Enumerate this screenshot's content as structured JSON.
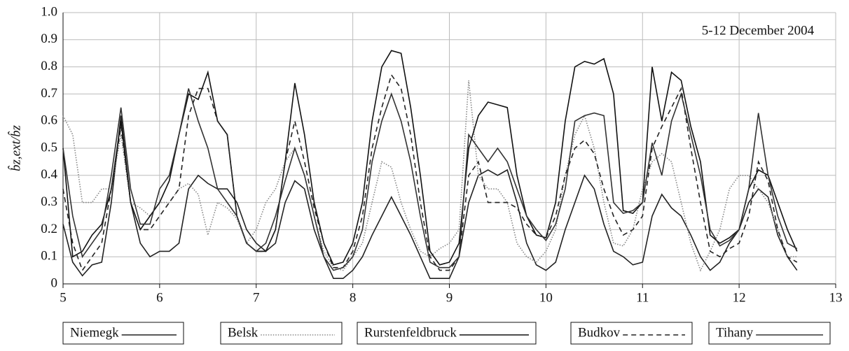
{
  "chart_data": {
    "type": "line",
    "annotation": "5-12 December 2004",
    "y_label": "b̂z,ext/b̂z",
    "x": [
      5,
      5.1,
      5.2,
      5.3,
      5.4,
      5.5,
      5.6,
      5.7,
      5.8,
      5.9,
      6,
      6.1,
      6.2,
      6.3,
      6.4,
      6.5,
      6.6,
      6.7,
      6.8,
      6.9,
      7,
      7.1,
      7.2,
      7.3,
      7.4,
      7.5,
      7.6,
      7.7,
      7.8,
      7.9,
      8,
      8.1,
      8.2,
      8.3,
      8.4,
      8.5,
      8.6,
      8.7,
      8.8,
      8.9,
      9,
      9.1,
      9.2,
      9.3,
      9.4,
      9.5,
      9.6,
      9.7,
      9.8,
      9.9,
      10,
      10.1,
      10.2,
      10.3,
      10.4,
      10.5,
      10.6,
      10.7,
      10.8,
      10.9,
      11,
      11.1,
      11.2,
      11.3,
      11.4,
      11.5,
      11.6,
      11.7,
      11.8,
      11.9,
      12,
      12.1,
      12.2,
      12.3,
      12.4,
      12.5,
      12.6
    ],
    "series": [
      {
        "name": "Niemegk",
        "color": "#222222",
        "dash": "solid",
        "values": [
          0.22,
          0.08,
          0.03,
          0.07,
          0.08,
          0.3,
          0.62,
          0.3,
          0.15,
          0.1,
          0.12,
          0.12,
          0.15,
          0.35,
          0.4,
          0.37,
          0.35,
          0.35,
          0.3,
          0.2,
          0.15,
          0.12,
          0.15,
          0.3,
          0.38,
          0.35,
          0.2,
          0.1,
          0.02,
          0.02,
          0.05,
          0.1,
          0.18,
          0.25,
          0.32,
          0.25,
          0.18,
          0.1,
          0.02,
          0.02,
          0.02,
          0.1,
          0.3,
          0.4,
          0.42,
          0.4,
          0.42,
          0.3,
          0.15,
          0.07,
          0.05,
          0.08,
          0.2,
          0.3,
          0.4,
          0.35,
          0.22,
          0.12,
          0.1,
          0.07,
          0.08,
          0.25,
          0.33,
          0.28,
          0.25,
          0.18,
          0.1,
          0.05,
          0.08,
          0.15,
          0.2,
          0.3,
          0.35,
          0.32,
          0.18,
          0.1,
          0.05
        ]
      },
      {
        "name": "Belsk",
        "color": "#888888",
        "dash": "dotted",
        "values": [
          0.62,
          0.55,
          0.3,
          0.3,
          0.35,
          0.35,
          0.55,
          0.3,
          0.28,
          0.25,
          0.3,
          0.3,
          0.35,
          0.37,
          0.33,
          0.18,
          0.3,
          0.28,
          0.24,
          0.15,
          0.2,
          0.3,
          0.35,
          0.45,
          0.5,
          0.4,
          0.25,
          0.12,
          0.06,
          0.05,
          0.1,
          0.15,
          0.3,
          0.45,
          0.43,
          0.3,
          0.2,
          0.12,
          0.1,
          0.13,
          0.15,
          0.2,
          0.75,
          0.4,
          0.35,
          0.35,
          0.3,
          0.15,
          0.1,
          0.08,
          0.12,
          0.2,
          0.4,
          0.55,
          0.62,
          0.5,
          0.3,
          0.15,
          0.14,
          0.2,
          0.35,
          0.45,
          0.48,
          0.45,
          0.3,
          0.15,
          0.05,
          0.12,
          0.2,
          0.35,
          0.4,
          0.4,
          0.35,
          0.3,
          0.2,
          0.1,
          0.1
        ]
      },
      {
        "name": "Rurstenfeldbruck",
        "color": "#111111",
        "dash": "solid",
        "values": [
          0.5,
          0.1,
          0.12,
          0.18,
          0.22,
          0.35,
          0.6,
          0.3,
          0.2,
          0.25,
          0.3,
          0.38,
          0.55,
          0.7,
          0.68,
          0.78,
          0.6,
          0.55,
          0.25,
          0.15,
          0.12,
          0.12,
          0.2,
          0.45,
          0.74,
          0.55,
          0.3,
          0.15,
          0.07,
          0.08,
          0.15,
          0.3,
          0.6,
          0.8,
          0.86,
          0.85,
          0.65,
          0.4,
          0.12,
          0.07,
          0.08,
          0.15,
          0.5,
          0.62,
          0.67,
          0.66,
          0.65,
          0.4,
          0.25,
          0.18,
          0.17,
          0.3,
          0.6,
          0.8,
          0.82,
          0.81,
          0.83,
          0.7,
          0.27,
          0.26,
          0.3,
          0.8,
          0.6,
          0.78,
          0.75,
          0.58,
          0.45,
          0.18,
          0.15,
          0.17,
          0.2,
          0.35,
          0.42,
          0.4,
          0.3,
          0.2,
          0.12
        ]
      },
      {
        "name": "Budkov",
        "color": "#222222",
        "dash": "dashed",
        "values": [
          0.35,
          0.15,
          0.05,
          0.1,
          0.15,
          0.35,
          0.58,
          0.3,
          0.2,
          0.2,
          0.25,
          0.3,
          0.35,
          0.62,
          0.72,
          0.72,
          0.6,
          0.55,
          0.25,
          0.15,
          0.12,
          0.12,
          0.2,
          0.45,
          0.6,
          0.45,
          0.28,
          0.15,
          0.06,
          0.06,
          0.12,
          0.25,
          0.5,
          0.65,
          0.77,
          0.72,
          0.55,
          0.3,
          0.1,
          0.05,
          0.05,
          0.1,
          0.4,
          0.45,
          0.3,
          0.3,
          0.3,
          0.28,
          0.22,
          0.18,
          0.17,
          0.25,
          0.4,
          0.5,
          0.53,
          0.48,
          0.35,
          0.25,
          0.18,
          0.2,
          0.25,
          0.5,
          0.58,
          0.65,
          0.72,
          0.5,
          0.3,
          0.12,
          0.1,
          0.13,
          0.15,
          0.25,
          0.45,
          0.38,
          0.2,
          0.1,
          0.08
        ]
      },
      {
        "name": "Tihany",
        "color": "#333333",
        "dash": "solid",
        "values": [
          0.5,
          0.25,
          0.1,
          0.15,
          0.2,
          0.4,
          0.65,
          0.35,
          0.22,
          0.22,
          0.35,
          0.4,
          0.55,
          0.72,
          0.6,
          0.5,
          0.35,
          0.3,
          0.25,
          0.15,
          0.12,
          0.15,
          0.25,
          0.38,
          0.5,
          0.4,
          0.25,
          0.1,
          0.05,
          0.06,
          0.1,
          0.2,
          0.45,
          0.6,
          0.7,
          0.6,
          0.45,
          0.25,
          0.08,
          0.06,
          0.06,
          0.1,
          0.55,
          0.5,
          0.45,
          0.5,
          0.45,
          0.35,
          0.25,
          0.2,
          0.16,
          0.22,
          0.35,
          0.6,
          0.62,
          0.63,
          0.62,
          0.3,
          0.26,
          0.27,
          0.3,
          0.52,
          0.4,
          0.6,
          0.7,
          0.55,
          0.4,
          0.2,
          0.14,
          0.16,
          0.2,
          0.35,
          0.63,
          0.4,
          0.25,
          0.15,
          0.13
        ]
      }
    ],
    "xlim": [
      5,
      13
    ],
    "xticks": [
      5,
      6,
      7,
      8,
      9,
      10,
      11,
      12,
      13
    ],
    "ylim": [
      0,
      1
    ],
    "yticks": [
      0,
      0.1,
      0.2,
      0.3,
      0.4,
      0.5,
      0.6,
      0.7,
      0.8,
      0.9,
      {
        "value": 1,
        "label": "1.0"
      }
    ],
    "grid": true,
    "legend": "bottom"
  }
}
